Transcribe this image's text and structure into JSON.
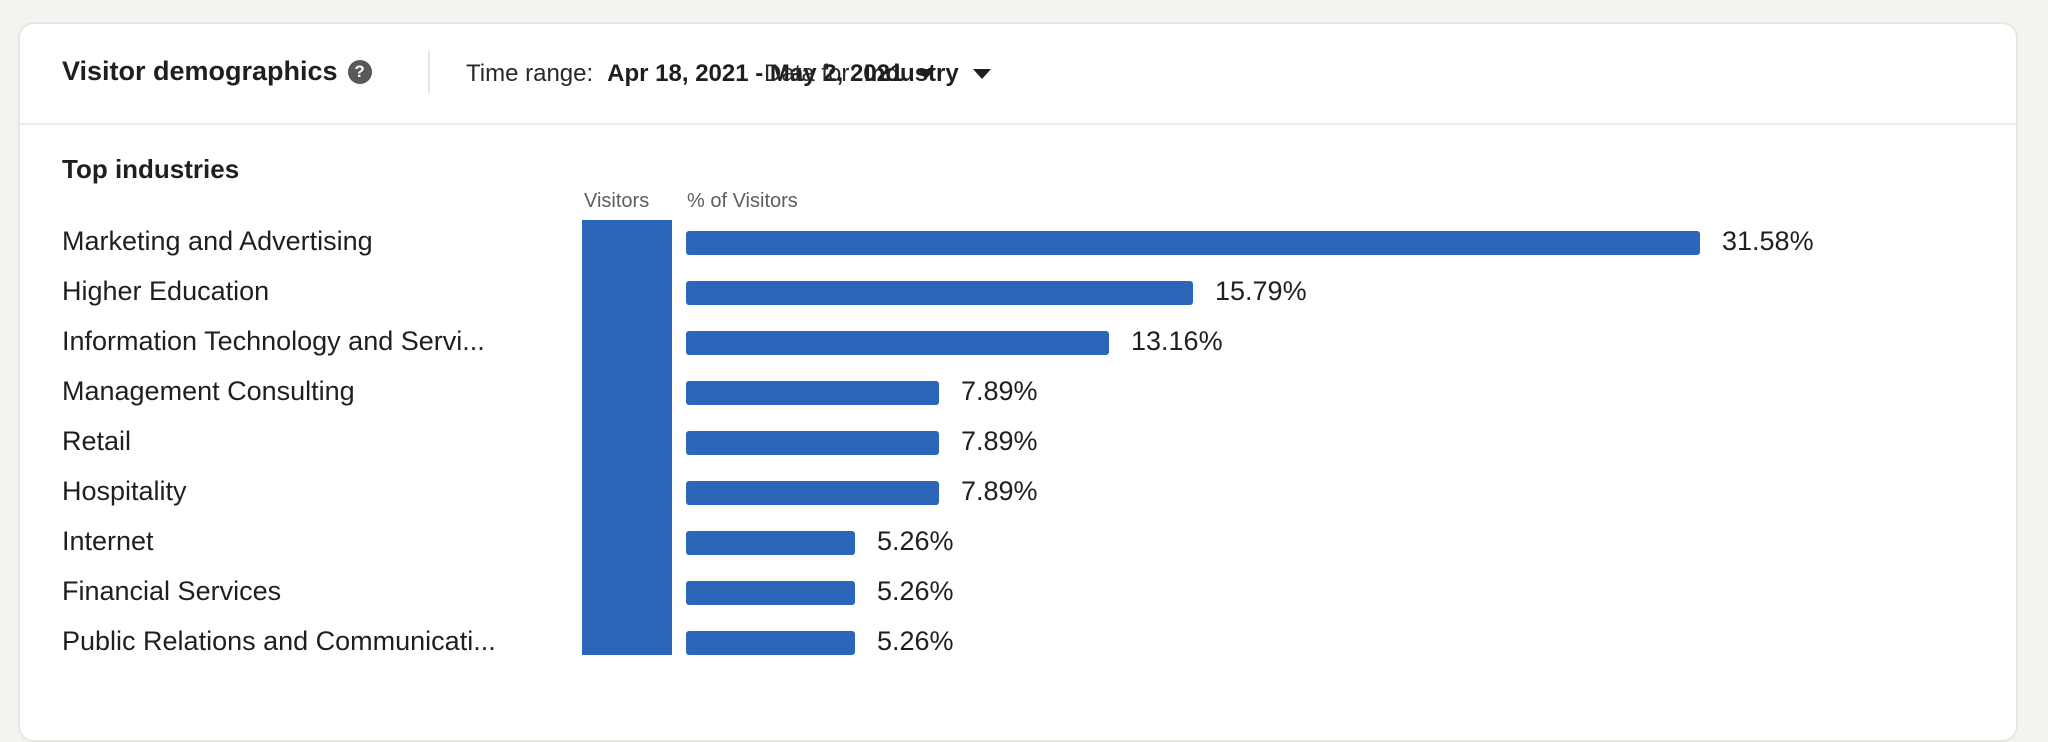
{
  "header": {
    "title": "Visitor demographics",
    "help_icon": "question-circle-icon",
    "time_range_label": "Time range:",
    "time_range_value": "Apr 18, 2021 - May 2, 2021",
    "data_for_label": "Data for:",
    "data_for_value": "Industry"
  },
  "section": {
    "title": "Top industries",
    "col_visitors": "Visitors",
    "col_pct": "% of Visitors"
  },
  "colors": {
    "bar": "#2b66bb",
    "background": "#f3f3ef",
    "card": "#ffffff"
  },
  "rows": [
    {
      "name": "Marketing and Advertising",
      "pct": "31.58%"
    },
    {
      "name": "Higher Education",
      "pct": "15.79%"
    },
    {
      "name": "Information Technology and Servi...",
      "pct": "13.16%"
    },
    {
      "name": "Management Consulting",
      "pct": "7.89%"
    },
    {
      "name": "Retail",
      "pct": "7.89%"
    },
    {
      "name": "Hospitality",
      "pct": "7.89%"
    },
    {
      "name": "Internet",
      "pct": "5.26%"
    },
    {
      "name": "Financial Services",
      "pct": "5.26%"
    },
    {
      "name": "Public Relations and Communicati...",
      "pct": "5.26%"
    }
  ],
  "chart_data": {
    "type": "bar",
    "orientation": "horizontal",
    "title": "Top industries",
    "xlabel": "% of Visitors",
    "ylabel": "",
    "categories": [
      "Marketing and Advertising",
      "Higher Education",
      "Information Technology and Servi...",
      "Management Consulting",
      "Retail",
      "Hospitality",
      "Internet",
      "Financial Services",
      "Public Relations and Communicati..."
    ],
    "values": [
      31.58,
      15.79,
      13.16,
      7.89,
      7.89,
      7.89,
      5.26,
      5.26,
      5.26
    ],
    "grid": false,
    "legend": null
  }
}
